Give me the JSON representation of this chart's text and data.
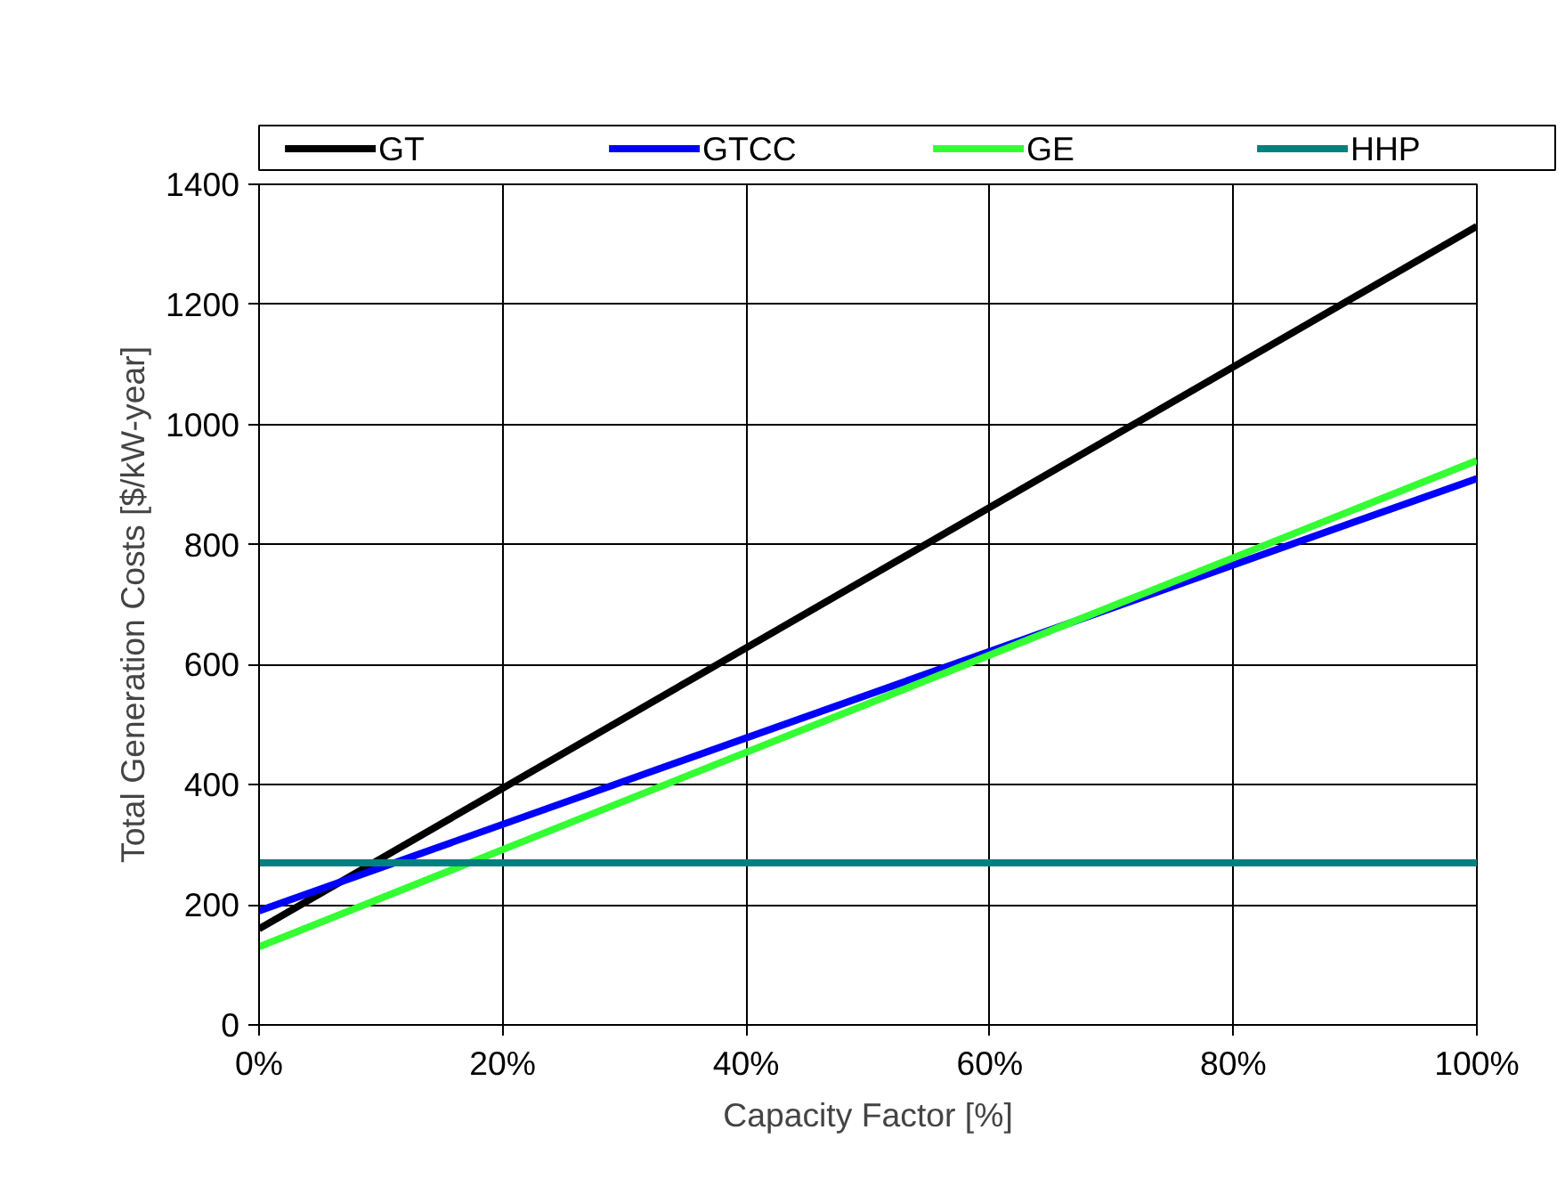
{
  "chart_data": {
    "type": "line",
    "xlabel": "Capacity Factor [%]",
    "ylabel": "Total Generation Costs [$/kW-year]",
    "x": [
      0,
      100
    ],
    "series": [
      {
        "name": "GT",
        "color": "#000000",
        "values": [
          160,
          1330
        ]
      },
      {
        "name": "GTCC",
        "color": "#0000ff",
        "values": [
          190,
          910
        ]
      },
      {
        "name": "GE",
        "color": "#33ff33",
        "values": [
          130,
          940
        ]
      },
      {
        "name": "HHP",
        "color": "#008080",
        "values": [
          270,
          270
        ]
      }
    ],
    "xlim": [
      0,
      100
    ],
    "xticks": [
      {
        "value": 0,
        "label": "0%"
      },
      {
        "value": 20,
        "label": "20%"
      },
      {
        "value": 40,
        "label": "40%"
      },
      {
        "value": 60,
        "label": "60%"
      },
      {
        "value": 80,
        "label": "80%"
      },
      {
        "value": 100,
        "label": "100%"
      }
    ],
    "ylim": [
      0,
      1400
    ],
    "yticks": [
      0,
      200,
      400,
      600,
      800,
      1000,
      1200,
      1400
    ],
    "grid": true,
    "legend": "top",
    "marker": "none",
    "line_style": "solid"
  }
}
